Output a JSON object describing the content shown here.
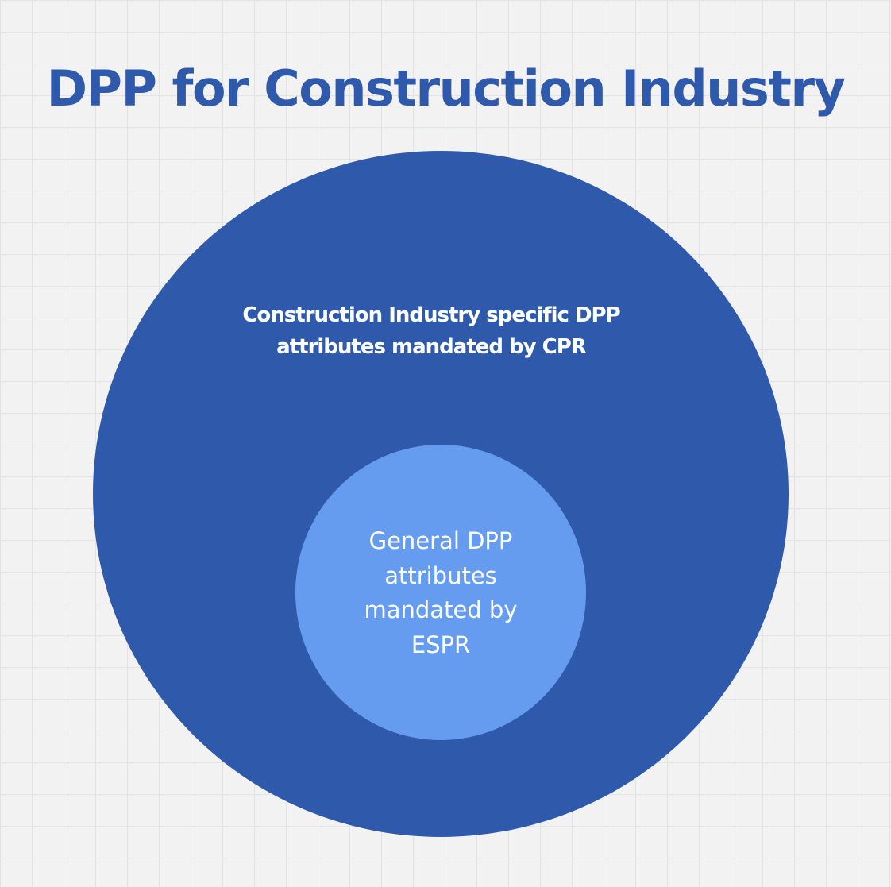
{
  "diagram": {
    "title": "DPP for Construction Industry",
    "outer": {
      "label": "Construction Industry specific DPP attributes mandated by CPR",
      "color": "#2f5aab"
    },
    "inner": {
      "label": "General DPP attributes mandated by ESPR",
      "color": "#669cf0"
    },
    "title_color": "#2f5aab",
    "background_color": "#f2f2f2"
  }
}
